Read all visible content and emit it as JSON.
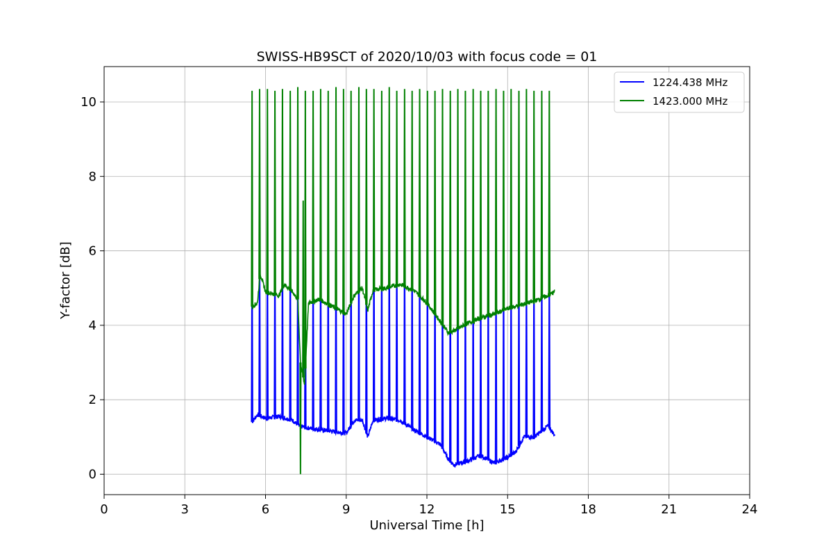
{
  "chart_data": {
    "type": "line",
    "title": "SWISS-HB9SCT of 2020/10/03 with focus code = 01",
    "xlabel": "Universal Time [h]",
    "ylabel": "Y-factor [dB]",
    "xlim": [
      0,
      24
    ],
    "ylim": [
      -0.55,
      10.95
    ],
    "xticks": [
      0,
      3,
      6,
      9,
      12,
      15,
      18,
      21,
      24
    ],
    "yticks": [
      0,
      2,
      4,
      6,
      8,
      10
    ],
    "grid": true,
    "legend_position": "top-right",
    "series": [
      {
        "name": "1224.438 MHz",
        "color": "#0000ff",
        "baseline": {
          "x": [
            5.5,
            5.7,
            6.0,
            6.5,
            7.0,
            7.25,
            7.5,
            8.0,
            8.5,
            9.0,
            9.3,
            9.6,
            9.8,
            10.0,
            10.5,
            11.0,
            11.5,
            12.0,
            12.5,
            12.8,
            13.0,
            13.5,
            14.0,
            14.5,
            15.0,
            15.3,
            15.6,
            16.0,
            16.5,
            16.75
          ],
          "y": [
            1.4,
            1.6,
            1.5,
            1.55,
            1.45,
            1.3,
            1.25,
            1.2,
            1.15,
            1.1,
            1.45,
            1.45,
            1.0,
            1.45,
            1.5,
            1.45,
            1.2,
            1.0,
            0.8,
            0.4,
            0.25,
            0.35,
            0.5,
            0.3,
            0.45,
            0.6,
            1.0,
            1.0,
            1.3,
            1.05
          ]
        },
        "spikes": {
          "x": [
            5.5,
            5.78,
            6.07,
            6.35,
            6.63,
            6.92,
            7.2,
            7.48,
            7.77,
            8.05,
            8.33,
            8.62,
            8.9,
            9.18,
            9.47,
            9.75,
            10.03,
            10.32,
            10.6,
            10.88,
            11.17,
            11.45,
            11.73,
            12.02,
            12.3,
            12.58,
            12.87,
            13.15,
            13.43,
            13.72,
            14.0,
            14.28,
            14.57,
            14.85,
            15.13,
            15.42,
            15.7,
            15.98,
            16.27,
            16.55
          ],
          "y": [
            5.8,
            6.2,
            6.0,
            6.1,
            6.2,
            6.3,
            6.2,
            6.1,
            6.0,
            6.1,
            6.2,
            6.3,
            6.2,
            6.3,
            6.2,
            6.4,
            6.3,
            6.2,
            6.4,
            6.3,
            6.2,
            6.3,
            6.1,
            6.0,
            5.9,
            5.8,
            5.7,
            5.6,
            5.7,
            5.6,
            5.5,
            5.5,
            5.6,
            5.5,
            5.6,
            5.6,
            5.5,
            5.5,
            5.6,
            5.5
          ]
        }
      },
      {
        "name": "1423.000 MHz",
        "color": "#008000",
        "baseline": {
          "x": [
            5.5,
            5.7,
            5.8,
            6.0,
            6.5,
            6.7,
            7.0,
            7.2,
            7.3,
            7.45,
            7.6,
            8.0,
            8.5,
            9.0,
            9.3,
            9.6,
            9.8,
            10.0,
            10.5,
            11.0,
            11.5,
            12.0,
            12.5,
            12.8,
            13.0,
            13.5,
            14.0,
            14.5,
            15.0,
            15.5,
            16.0,
            16.5,
            16.75
          ],
          "y": [
            4.5,
            4.6,
            5.4,
            4.9,
            4.8,
            5.1,
            4.9,
            4.7,
            3.0,
            2.4,
            4.6,
            4.7,
            4.5,
            4.3,
            4.8,
            5.0,
            4.4,
            4.95,
            5.0,
            5.1,
            4.95,
            4.6,
            4.1,
            3.8,
            3.85,
            4.05,
            4.2,
            4.3,
            4.45,
            4.55,
            4.65,
            4.8,
            4.9
          ]
        },
        "spikes": {
          "x": [
            5.5,
            5.78,
            6.07,
            6.35,
            6.63,
            6.92,
            7.2,
            7.48,
            7.77,
            8.05,
            8.33,
            8.62,
            8.9,
            9.18,
            9.47,
            9.75,
            10.03,
            10.32,
            10.6,
            10.88,
            11.17,
            11.45,
            11.73,
            12.02,
            12.3,
            12.58,
            12.87,
            13.15,
            13.43,
            13.72,
            14.0,
            14.28,
            14.57,
            14.85,
            15.13,
            15.42,
            15.7,
            15.98,
            16.27,
            16.55
          ],
          "y": [
            10.3,
            10.35,
            10.35,
            10.3,
            10.35,
            10.3,
            10.4,
            10.3,
            10.3,
            10.35,
            10.3,
            10.4,
            10.35,
            10.3,
            10.4,
            10.35,
            10.35,
            10.3,
            10.4,
            10.3,
            10.35,
            10.3,
            10.35,
            10.3,
            10.3,
            10.35,
            10.3,
            10.35,
            10.3,
            10.35,
            10.3,
            10.3,
            10.35,
            10.3,
            10.35,
            10.3,
            10.35,
            10.3,
            10.3,
            10.3
          ]
        },
        "dips": {
          "x": [
            7.3,
            7.4,
            7.48
          ],
          "y": [
            0.0,
            7.35,
            7.55
          ]
        }
      }
    ]
  }
}
